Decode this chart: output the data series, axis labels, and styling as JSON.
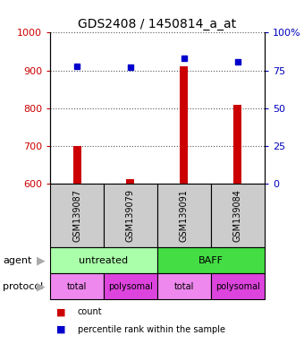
{
  "title": "GDS2408 / 1450814_a_at",
  "samples": [
    "GSM139087",
    "GSM139079",
    "GSM139091",
    "GSM139084"
  ],
  "bar_values": [
    700,
    612,
    910,
    810
  ],
  "percentile_values": [
    78,
    77,
    83,
    81
  ],
  "ylim_left": [
    600,
    1000
  ],
  "ylim_right": [
    0,
    100
  ],
  "yticks_left": [
    600,
    700,
    800,
    900,
    1000
  ],
  "yticks_right": [
    0,
    25,
    50,
    75,
    100
  ],
  "bar_color": "#cc0000",
  "percentile_color": "#0000cc",
  "bar_width": 0.15,
  "agent_colors": [
    "#aaffaa",
    "#44dd44"
  ],
  "protocol_colors": [
    "#ee88ee",
    "#dd44dd",
    "#ee88ee",
    "#dd44dd"
  ],
  "legend_count_color": "#cc0000",
  "legend_pct_color": "#0000cc",
  "left_tick_color": "#cc0000",
  "right_tick_color": "#0000bb",
  "grid_color": "#555555",
  "background_color": "#ffffff",
  "sample_box_color": "#cccccc",
  "arrow_color": "#aaaaaa",
  "title_fontsize": 10,
  "tick_fontsize": 8,
  "label_fontsize": 8,
  "sample_fontsize": 7,
  "proto_fontsize": 7,
  "legend_fontsize": 7
}
